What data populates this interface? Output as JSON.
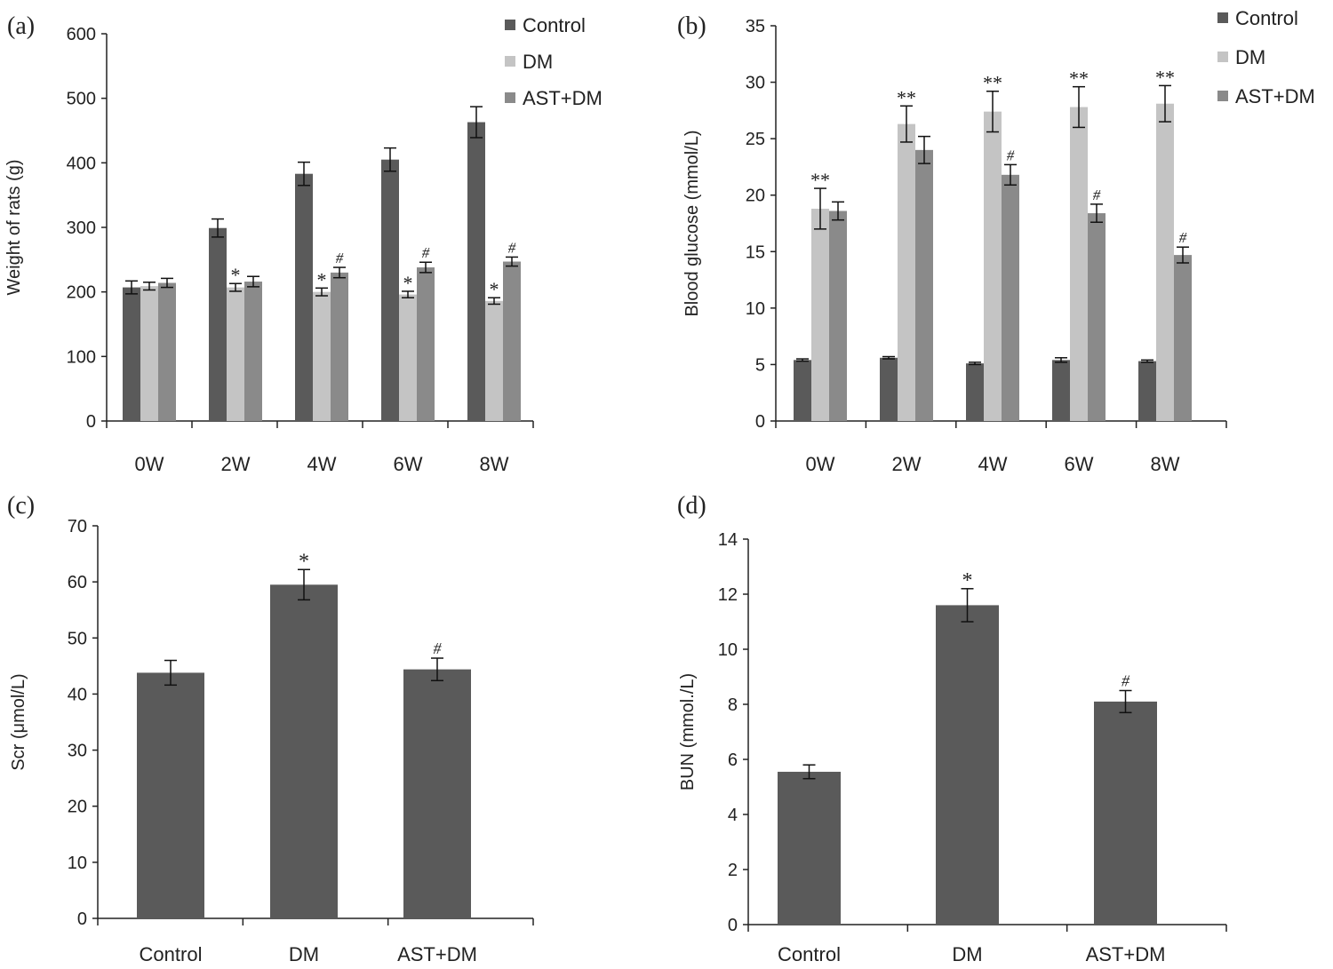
{
  "colors": {
    "control": "#5a5a5a",
    "dm": "#c4c4c4",
    "ast_dm": "#8a8a8a",
    "single": "#5a5a5a",
    "axis": "#222222"
  },
  "chart_data": [
    {
      "panel": "(a)",
      "type": "bar",
      "categories": [
        "0W",
        "2W",
        "4W",
        "6W",
        "8W"
      ],
      "ylabel": "Weight of rats (g)",
      "ylim": [
        0,
        600
      ],
      "yticks": [
        0,
        100,
        200,
        300,
        400,
        500,
        600
      ],
      "legend_position": "top-right",
      "series": [
        {
          "name": "Control",
          "values": [
            207,
            299,
            383,
            405,
            463
          ],
          "errors": [
            10,
            14,
            18,
            18,
            24
          ],
          "marks": [
            "",
            "",
            "",
            "",
            ""
          ]
        },
        {
          "name": "DM",
          "values": [
            209,
            207,
            200,
            196,
            186
          ],
          "errors": [
            6,
            6,
            6,
            5,
            5
          ],
          "marks": [
            "",
            "*",
            "*",
            "*",
            "*"
          ]
        },
        {
          "name": "AST+DM",
          "values": [
            214,
            216,
            230,
            238,
            247
          ],
          "errors": [
            7,
            8,
            8,
            8,
            7
          ],
          "marks": [
            "",
            "",
            "#",
            "#",
            "#"
          ]
        }
      ]
    },
    {
      "panel": "(b)",
      "type": "bar",
      "categories": [
        "0W",
        "2W",
        "4W",
        "6W",
        "8W"
      ],
      "ylabel": "Blood glucose (mmol/L)",
      "ylim": [
        0,
        35
      ],
      "yticks": [
        0,
        5,
        10,
        15,
        20,
        25,
        30,
        35
      ],
      "legend_position": "top-right",
      "series": [
        {
          "name": "Control",
          "values": [
            5.4,
            5.6,
            5.1,
            5.4,
            5.3
          ],
          "errors": [
            0.1,
            0.1,
            0.1,
            0.2,
            0.1
          ],
          "marks": [
            "",
            "",
            "",
            "",
            ""
          ]
        },
        {
          "name": "DM",
          "values": [
            18.8,
            26.3,
            27.4,
            27.8,
            28.1
          ],
          "errors": [
            1.8,
            1.6,
            1.8,
            1.8,
            1.6
          ],
          "marks": [
            "**",
            "**",
            "**",
            "**",
            "**"
          ]
        },
        {
          "name": "AST+DM",
          "values": [
            18.6,
            24.0,
            21.8,
            18.4,
            14.7
          ],
          "errors": [
            0.8,
            1.2,
            0.9,
            0.8,
            0.7
          ],
          "marks": [
            "",
            "",
            "#",
            "#",
            "#"
          ]
        }
      ]
    },
    {
      "panel": "(c)",
      "type": "bar",
      "categories": [
        "Control",
        "DM",
        "AST+DM"
      ],
      "ylabel": "Scr (μmol/L)",
      "ylim": [
        0,
        70
      ],
      "yticks": [
        0,
        10,
        20,
        30,
        40,
        50,
        60,
        70
      ],
      "series": [
        {
          "name": "",
          "values": [
            43.8,
            59.5,
            44.4
          ],
          "errors": [
            2.2,
            2.7,
            2.0
          ],
          "marks": [
            "",
            "*",
            "#"
          ]
        }
      ]
    },
    {
      "panel": "(d)",
      "type": "bar",
      "categories": [
        "Control",
        "DM",
        "AST+DM"
      ],
      "ylabel": "BUN (mmol./L)",
      "ylim": [
        0,
        14
      ],
      "yticks": [
        0,
        2,
        4,
        6,
        8,
        10,
        12,
        14
      ],
      "series": [
        {
          "name": "",
          "values": [
            5.55,
            11.6,
            8.1
          ],
          "errors": [
            0.25,
            0.6,
            0.4
          ],
          "marks": [
            "",
            "*",
            "#"
          ]
        }
      ]
    }
  ]
}
